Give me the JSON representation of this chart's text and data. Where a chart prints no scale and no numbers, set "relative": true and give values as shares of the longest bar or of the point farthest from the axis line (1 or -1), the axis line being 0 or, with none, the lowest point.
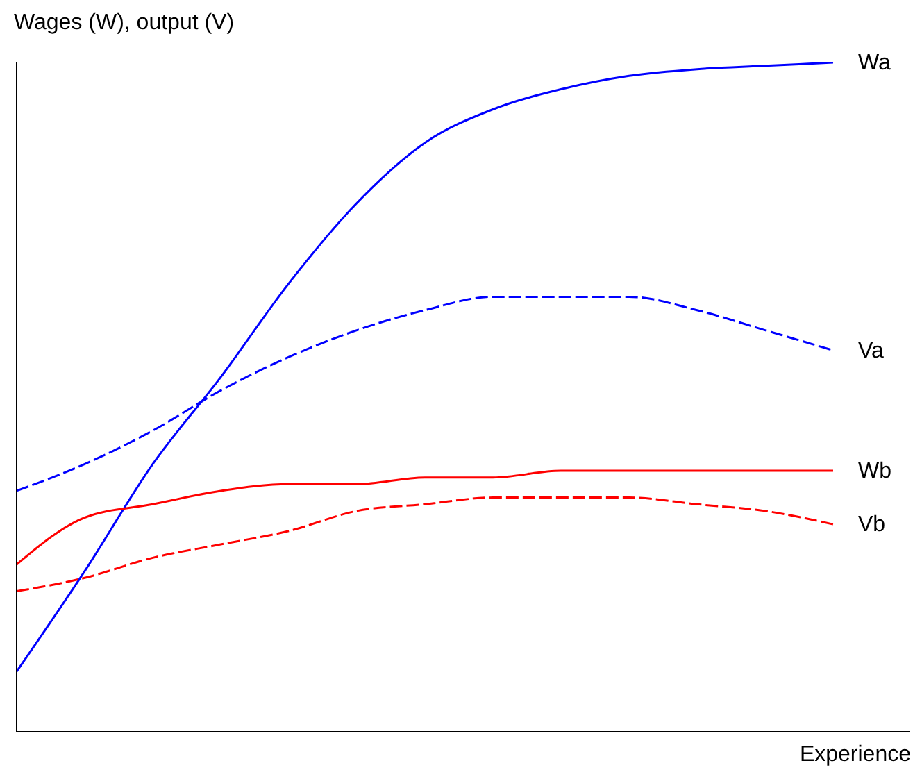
{
  "chart_data": {
    "type": "line",
    "relative": true,
    "xlabel": "Experience",
    "ylabel": "Wages (W), output (V)",
    "legend": false,
    "grid": false,
    "marker": "none",
    "categories": [
      null,
      null,
      null,
      null,
      null,
      null,
      null,
      null,
      null,
      null,
      null,
      null,
      null
    ],
    "series": [
      {
        "name": "Wa",
        "color": "#0000ff",
        "line_style": "solid",
        "values": [
          0.09,
          0.24,
          0.4,
          0.53,
          0.67,
          0.79,
          0.88,
          0.93,
          0.96,
          0.98,
          0.99,
          0.995,
          1
        ]
      },
      {
        "name": "Va",
        "color": "#0000ff",
        "line_style": "dashed",
        "values": [
          0.36,
          0.4,
          0.45,
          0.51,
          0.56,
          0.6,
          0.63,
          0.65,
          0.65,
          0.65,
          0.63,
          0.6,
          0.57
        ]
      },
      {
        "name": "Wb",
        "color": "#ff0000",
        "line_style": "solid",
        "values": [
          0.25,
          0.32,
          0.34,
          0.36,
          0.37,
          0.37,
          0.38,
          0.38,
          0.39,
          0.39,
          0.39,
          0.39,
          0.39
        ]
      },
      {
        "name": "Vb",
        "color": "#ff0000",
        "line_style": "dashed",
        "values": [
          0.21,
          0.23,
          0.26,
          0.28,
          0.3,
          0.33,
          0.34,
          0.35,
          0.35,
          0.35,
          0.34,
          0.33,
          0.31
        ]
      }
    ]
  }
}
